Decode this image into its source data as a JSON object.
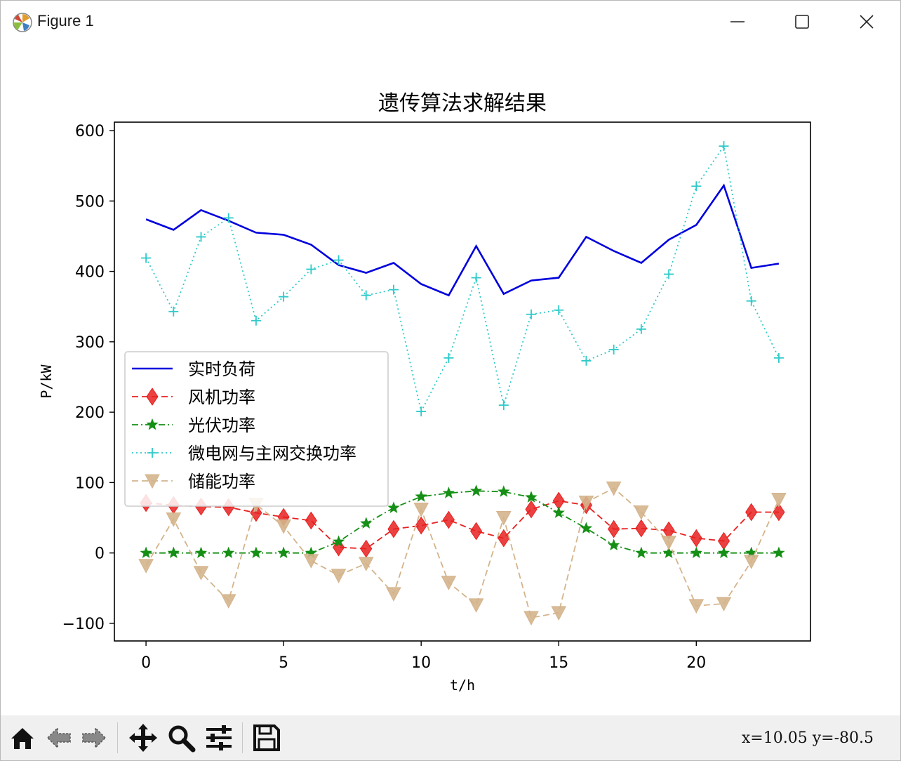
{
  "window": {
    "title": "Figure 1",
    "buttons": [
      "minimize",
      "maximize",
      "close"
    ]
  },
  "toolbar": {
    "tools": [
      {
        "name": "home-icon",
        "tooltip": "Reset original view"
      },
      {
        "name": "back-arrow-icon",
        "tooltip": "Back"
      },
      {
        "name": "forward-arrow-icon",
        "tooltip": "Forward"
      },
      {
        "name": "pan-icon",
        "tooltip": "Pan"
      },
      {
        "name": "zoom-icon",
        "tooltip": "Zoom"
      },
      {
        "name": "configure-subplots-icon",
        "tooltip": "Configure subplots"
      },
      {
        "name": "save-icon",
        "tooltip": "Save"
      }
    ],
    "coords": "x=10.05 y=-80.5"
  },
  "chart_data": {
    "type": "line",
    "title": "遗传算法求解结果",
    "xlabel": "t/h",
    "ylabel": "P/kW",
    "xlim": [
      -1.15,
      24.15
    ],
    "ylim": [
      -125,
      612
    ],
    "xticks": [
      0,
      5,
      10,
      15,
      20
    ],
    "yticks": [
      -100,
      0,
      100,
      200,
      300,
      400,
      500,
      600
    ],
    "xtick_labels": [
      "0",
      "5",
      "10",
      "15",
      "20"
    ],
    "ytick_labels": [
      "−100",
      "0",
      "100",
      "200",
      "300",
      "400",
      "500",
      "600"
    ],
    "legend_position": "center-left",
    "x": [
      0,
      1,
      2,
      3,
      4,
      5,
      6,
      7,
      8,
      9,
      10,
      11,
      12,
      13,
      14,
      15,
      16,
      17,
      18,
      19,
      20,
      21,
      22,
      23
    ],
    "series": [
      {
        "name": "实时负荷",
        "color": "#0000dd",
        "line": "solid",
        "marker": "none",
        "values": [
          474,
          459,
          487,
          472,
          455,
          452,
          438,
          409,
          398,
          412,
          382,
          366,
          436,
          368,
          387,
          391,
          449,
          429,
          412,
          445,
          466,
          522,
          405,
          411
        ]
      },
      {
        "name": "风机功率",
        "color": "#e82020",
        "line": "dashed",
        "marker": "diamond",
        "values": [
          71,
          68,
          66,
          65,
          57,
          51,
          46,
          8,
          6,
          34,
          39,
          47,
          31,
          21,
          62,
          74,
          68,
          34,
          35,
          32,
          21,
          17,
          58,
          58
        ]
      },
      {
        "name": "光伏功率",
        "color": "#158f15",
        "line": "dashdot",
        "marker": "star",
        "values": [
          0,
          0,
          0,
          0,
          0,
          0,
          0,
          16,
          42,
          64,
          80,
          85,
          88,
          87,
          79,
          57,
          35,
          11,
          0,
          0,
          0,
          0,
          0,
          0
        ]
      },
      {
        "name": "微电网与主网交换功率",
        "color": "#2fcaca",
        "line": "dotted",
        "marker": "plus",
        "values": [
          419,
          343,
          449,
          476,
          330,
          364,
          403,
          416,
          366,
          374,
          201,
          277,
          391,
          210,
          339,
          345,
          273,
          289,
          318,
          396,
          521,
          578,
          358,
          277
        ]
      },
      {
        "name": "储能功率",
        "color": "#d4b48c",
        "line": "dashed",
        "marker": "triangle-down",
        "values": [
          -18,
          48,
          -28,
          -68,
          69,
          38,
          -11,
          -32,
          -15,
          -58,
          62,
          -42,
          -74,
          50,
          -92,
          -85,
          72,
          92,
          58,
          15,
          -75,
          -72,
          -12,
          76
        ]
      }
    ]
  }
}
